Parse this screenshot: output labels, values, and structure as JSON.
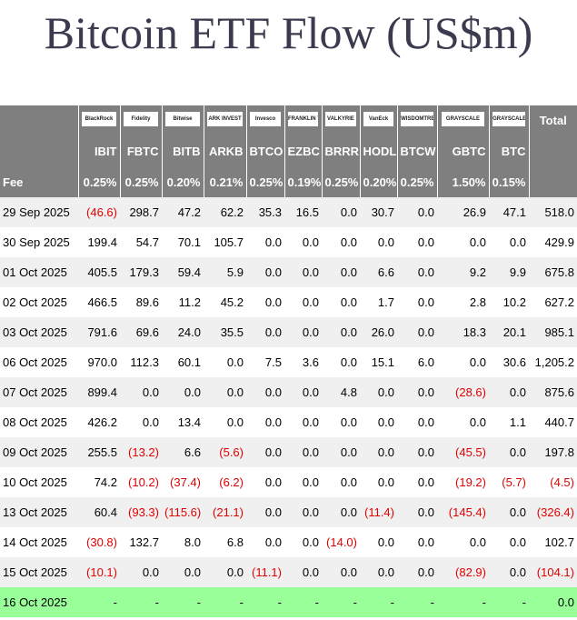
{
  "title": "Bitcoin ETF Flow (US$m)",
  "table": {
    "issuers": [
      "BlackRock",
      "Fidelity",
      "Bitwise",
      "ARK INVEST",
      "Invesco",
      "FRANKLIN TEMPLETON",
      "VALKYRIE",
      "VanEck",
      "WISDOMTREE",
      "GRAYSCALE",
      "GRAYSCALE"
    ],
    "total_label": "Total",
    "tickers": [
      "IBIT",
      "FBTC",
      "BITB",
      "ARKB",
      "BTCO",
      "EZBC",
      "BRRR",
      "HODL",
      "BTCW",
      "GBTC",
      "BTC"
    ],
    "fee_label": "Fee",
    "fees": [
      "0.25%",
      "0.25%",
      "0.20%",
      "0.21%",
      "0.25%",
      "0.19%",
      "0.25%",
      "0.20%",
      "0.25%",
      "1.50%",
      "0.15%"
    ],
    "rows": [
      [
        "29 Sep 2025",
        "(46.6)",
        "298.7",
        "47.2",
        "62.2",
        "35.3",
        "16.5",
        "0.0",
        "30.7",
        "0.0",
        "26.9",
        "47.1",
        "518.0"
      ],
      [
        "30 Sep 2025",
        "199.4",
        "54.7",
        "70.1",
        "105.7",
        "0.0",
        "0.0",
        "0.0",
        "0.0",
        "0.0",
        "0.0",
        "0.0",
        "429.9"
      ],
      [
        "01 Oct 2025",
        "405.5",
        "179.3",
        "59.4",
        "5.9",
        "0.0",
        "0.0",
        "0.0",
        "6.6",
        "0.0",
        "9.2",
        "9.9",
        "675.8"
      ],
      [
        "02 Oct 2025",
        "466.5",
        "89.6",
        "11.2",
        "45.2",
        "0.0",
        "0.0",
        "0.0",
        "1.7",
        "0.0",
        "2.8",
        "10.2",
        "627.2"
      ],
      [
        "03 Oct 2025",
        "791.6",
        "69.6",
        "24.0",
        "35.5",
        "0.0",
        "0.0",
        "0.0",
        "26.0",
        "0.0",
        "18.3",
        "20.1",
        "985.1"
      ],
      [
        "06 Oct 2025",
        "970.0",
        "112.3",
        "60.1",
        "0.0",
        "7.5",
        "3.6",
        "0.0",
        "15.1",
        "6.0",
        "0.0",
        "30.6",
        "1,205.2"
      ],
      [
        "07 Oct 2025",
        "899.4",
        "0.0",
        "0.0",
        "0.0",
        "0.0",
        "0.0",
        "4.8",
        "0.0",
        "0.0",
        "(28.6)",
        "0.0",
        "875.6"
      ],
      [
        "08 Oct 2025",
        "426.2",
        "0.0",
        "13.4",
        "0.0",
        "0.0",
        "0.0",
        "0.0",
        "0.0",
        "0.0",
        "0.0",
        "1.1",
        "440.7"
      ],
      [
        "09 Oct 2025",
        "255.5",
        "(13.2)",
        "6.6",
        "(5.6)",
        "0.0",
        "0.0",
        "0.0",
        "0.0",
        "0.0",
        "(45.5)",
        "0.0",
        "197.8"
      ],
      [
        "10 Oct 2025",
        "74.2",
        "(10.2)",
        "(37.4)",
        "(6.2)",
        "0.0",
        "0.0",
        "0.0",
        "0.0",
        "0.0",
        "(19.2)",
        "(5.7)",
        "(4.5)"
      ],
      [
        "13 Oct 2025",
        "60.4",
        "(93.3)",
        "(115.6)",
        "(21.1)",
        "0.0",
        "0.0",
        "0.0",
        "(11.4)",
        "0.0",
        "(145.4)",
        "0.0",
        "(326.4)"
      ],
      [
        "14 Oct 2025",
        "(30.8)",
        "132.7",
        "8.0",
        "6.8",
        "0.0",
        "0.0",
        "(14.0)",
        "0.0",
        "0.0",
        "0.0",
        "0.0",
        "102.7"
      ],
      [
        "15 Oct 2025",
        "(10.1)",
        "0.0",
        "0.0",
        "0.0",
        "(11.1)",
        "0.0",
        "0.0",
        "0.0",
        "0.0",
        "(82.9)",
        "0.0",
        "(104.1)"
      ],
      [
        "16 Oct 2025",
        "-",
        "-",
        "-",
        "-",
        "-",
        "-",
        "-",
        "-",
        "-",
        "-",
        "-",
        "0.0"
      ]
    ]
  }
}
